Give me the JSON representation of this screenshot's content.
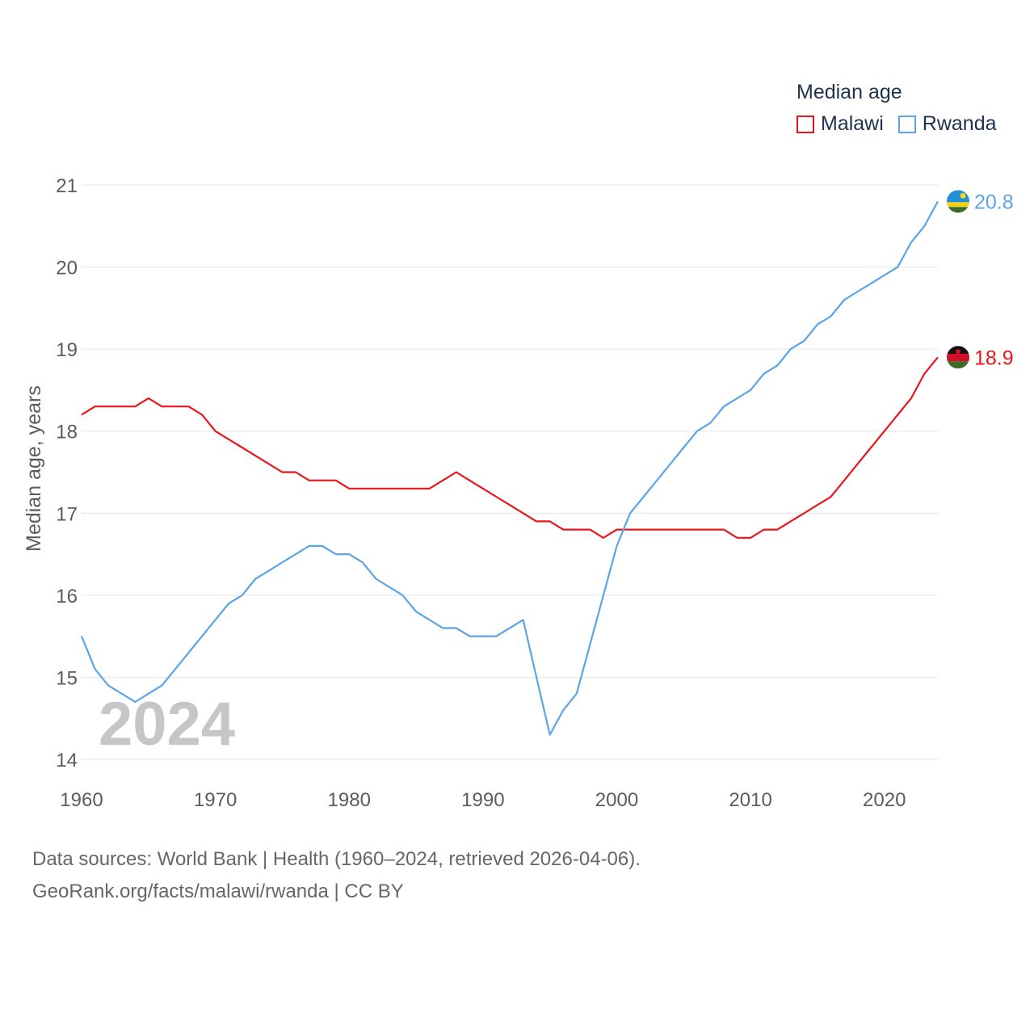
{
  "chart_data": {
    "type": "line",
    "title": "",
    "legend_title": "Median age",
    "xlabel": "",
    "ylabel": "Median age, years",
    "xlim": [
      1960,
      2024
    ],
    "ylim": [
      14,
      21
    ],
    "x_ticks": [
      1960,
      1970,
      1980,
      1990,
      2000,
      2010,
      2020
    ],
    "y_ticks": [
      14,
      15,
      16,
      17,
      18,
      19,
      20,
      21
    ],
    "grid": true,
    "legend_position": "top-right",
    "year_overlay": "2024",
    "series": [
      {
        "name": "Malawi",
        "color": "#e8161b",
        "end_label": "18.9",
        "flag_icon": "malawi-flag-icon",
        "x": [
          1960,
          1961,
          1962,
          1963,
          1964,
          1965,
          1966,
          1967,
          1968,
          1969,
          1970,
          1971,
          1972,
          1973,
          1974,
          1975,
          1976,
          1977,
          1978,
          1979,
          1980,
          1981,
          1982,
          1983,
          1984,
          1985,
          1986,
          1987,
          1988,
          1989,
          1990,
          1991,
          1992,
          1993,
          1994,
          1995,
          1996,
          1997,
          1998,
          1999,
          2000,
          2001,
          2002,
          2003,
          2004,
          2005,
          2006,
          2007,
          2008,
          2009,
          2010,
          2011,
          2012,
          2013,
          2014,
          2015,
          2016,
          2017,
          2018,
          2019,
          2020,
          2021,
          2022,
          2023,
          2024
        ],
        "y": [
          18.2,
          18.3,
          18.3,
          18.3,
          18.3,
          18.4,
          18.3,
          18.3,
          18.3,
          18.2,
          18.0,
          17.9,
          17.8,
          17.7,
          17.6,
          17.5,
          17.5,
          17.4,
          17.4,
          17.4,
          17.3,
          17.3,
          17.3,
          17.3,
          17.3,
          17.3,
          17.3,
          17.4,
          17.5,
          17.4,
          17.3,
          17.2,
          17.1,
          17.0,
          16.9,
          16.9,
          16.8,
          16.8,
          16.8,
          16.7,
          16.8,
          16.8,
          16.8,
          16.8,
          16.8,
          16.8,
          16.8,
          16.8,
          16.8,
          16.7,
          16.7,
          16.8,
          16.8,
          16.9,
          17.0,
          17.1,
          17.2,
          17.4,
          17.6,
          17.8,
          18.0,
          18.2,
          18.4,
          18.7,
          18.9
        ]
      },
      {
        "name": "Rwanda",
        "color": "#5ba4e5",
        "end_label": "20.8",
        "flag_icon": "rwanda-flag-icon",
        "x": [
          1960,
          1961,
          1962,
          1963,
          1964,
          1965,
          1966,
          1967,
          1968,
          1969,
          1970,
          1971,
          1972,
          1973,
          1974,
          1975,
          1976,
          1977,
          1978,
          1979,
          1980,
          1981,
          1982,
          1983,
          1984,
          1985,
          1986,
          1987,
          1988,
          1989,
          1990,
          1991,
          1992,
          1993,
          1994,
          1995,
          1996,
          1997,
          1998,
          1999,
          2000,
          2001,
          2002,
          2003,
          2004,
          2005,
          2006,
          2007,
          2008,
          2009,
          2010,
          2011,
          2012,
          2013,
          2014,
          2015,
          2016,
          2017,
          2018,
          2019,
          2020,
          2021,
          2022,
          2023,
          2024
        ],
        "y": [
          15.5,
          15.1,
          14.9,
          14.8,
          14.7,
          14.8,
          14.9,
          15.1,
          15.3,
          15.5,
          15.7,
          15.9,
          16.0,
          16.2,
          16.3,
          16.4,
          16.5,
          16.6,
          16.6,
          16.5,
          16.5,
          16.4,
          16.2,
          16.1,
          16.0,
          15.8,
          15.7,
          15.6,
          15.6,
          15.5,
          15.5,
          15.5,
          15.6,
          15.7,
          15.0,
          14.3,
          14.6,
          14.8,
          15.4,
          16.0,
          16.6,
          17.0,
          17.2,
          17.4,
          17.6,
          17.8,
          18.0,
          18.1,
          18.3,
          18.4,
          18.5,
          18.7,
          18.8,
          19.0,
          19.1,
          19.3,
          19.4,
          19.6,
          19.7,
          19.8,
          19.9,
          20.0,
          20.3,
          20.5,
          20.8
        ]
      }
    ]
  },
  "footer": {
    "source_line": "Data sources: World Bank | Health (1960–2024, retrieved 2026-04-06).",
    "credit_line": "GeoRank.org/facts/malawi/rwanda | CC BY"
  }
}
